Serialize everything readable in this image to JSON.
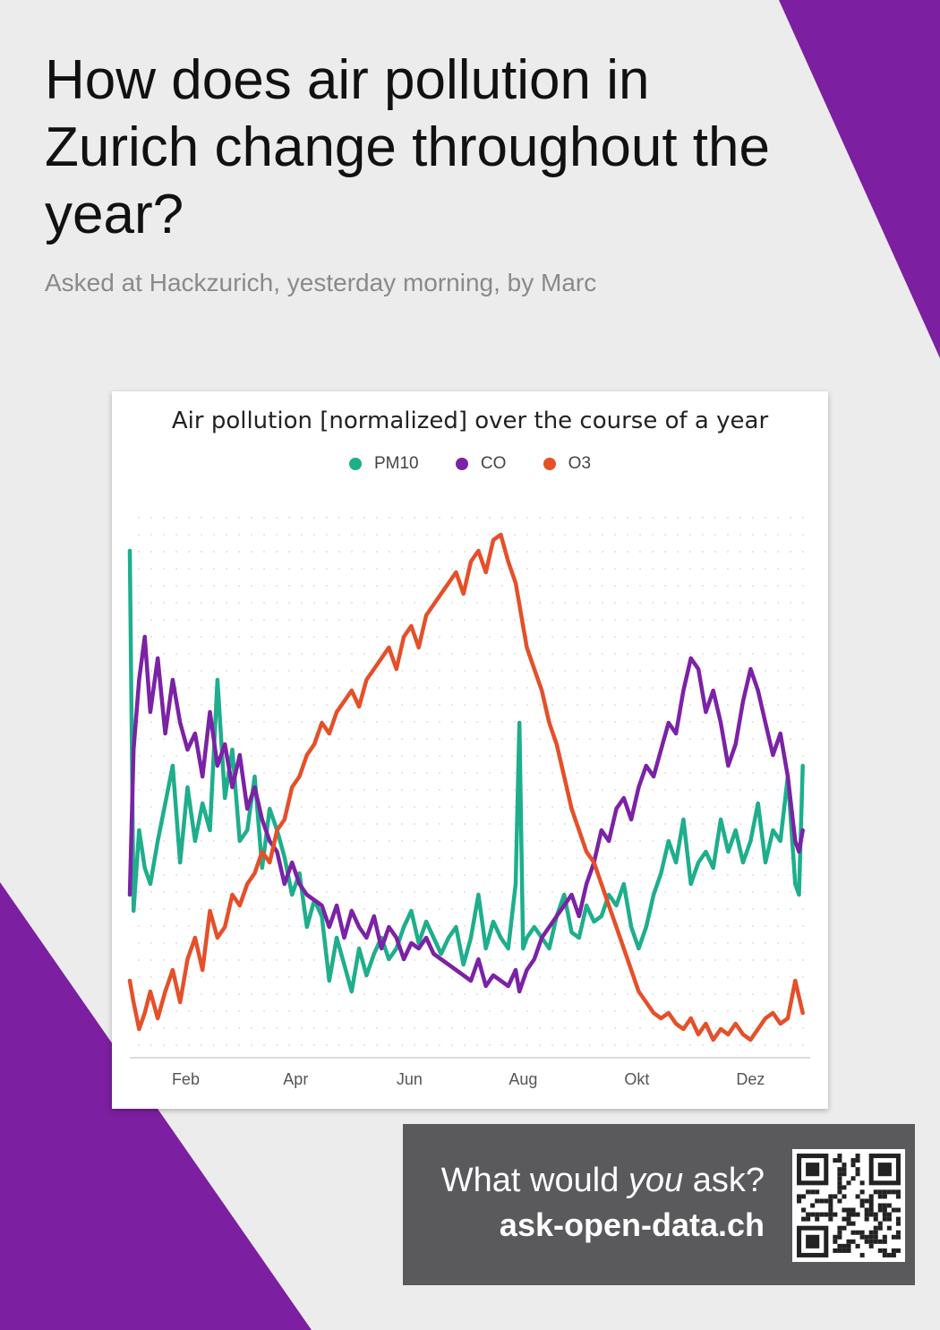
{
  "header": {
    "title": "How does air pollution in Zurich change throughout the year?",
    "subtitle": "Asked at Hackzurich, yesterday morning, by Marc"
  },
  "colors": {
    "background": "#ececec",
    "accent_purple": "#7c1fa0",
    "pm10": "#1fae8c",
    "co": "#7b22a5",
    "o3": "#e4502a",
    "promo_bg": "#5a5a5c"
  },
  "chart_data": {
    "type": "line",
    "title": "Air pollution [normalized] over the course of a year",
    "x_ticks": [
      "Feb",
      "Apr",
      "Jun",
      "Aug",
      "Okt",
      "Dez"
    ],
    "x_tick_days": [
      45,
      104,
      165,
      226,
      287,
      348
    ],
    "xlim": [
      15,
      380
    ],
    "ylim": [
      0,
      1
    ],
    "grid": "dotted",
    "legend_position": "top",
    "series": [
      {
        "name": "PM10",
        "color": "#1fae8c",
        "x": [
          15,
          17,
          20,
          23,
          26,
          30,
          34,
          38,
          42,
          46,
          50,
          54,
          58,
          62,
          66,
          70,
          74,
          78,
          82,
          86,
          90,
          94,
          98,
          102,
          106,
          110,
          114,
          118,
          122,
          126,
          130,
          134,
          138,
          142,
          146,
          150,
          154,
          158,
          162,
          166,
          170,
          174,
          178,
          182,
          186,
          190,
          194,
          198,
          202,
          206,
          210,
          214,
          218,
          222,
          224,
          226,
          228,
          232,
          236,
          240,
          244,
          248,
          252,
          256,
          260,
          264,
          268,
          272,
          276,
          280,
          284,
          288,
          292,
          296,
          300,
          304,
          308,
          312,
          316,
          320,
          324,
          328,
          332,
          336,
          340,
          344,
          348,
          352,
          356,
          360,
          364,
          368,
          372,
          374,
          376
        ],
        "values": [
          0.92,
          0.25,
          0.4,
          0.33,
          0.3,
          0.38,
          0.45,
          0.52,
          0.34,
          0.48,
          0.38,
          0.45,
          0.4,
          0.68,
          0.46,
          0.55,
          0.38,
          0.4,
          0.5,
          0.33,
          0.44,
          0.4,
          0.35,
          0.28,
          0.32,
          0.22,
          0.27,
          0.24,
          0.12,
          0.2,
          0.15,
          0.1,
          0.18,
          0.13,
          0.17,
          0.2,
          0.16,
          0.18,
          0.22,
          0.25,
          0.19,
          0.23,
          0.2,
          0.17,
          0.2,
          0.22,
          0.15,
          0.2,
          0.28,
          0.18,
          0.23,
          0.2,
          0.18,
          0.3,
          0.6,
          0.18,
          0.2,
          0.22,
          0.2,
          0.18,
          0.24,
          0.28,
          0.21,
          0.2,
          0.26,
          0.23,
          0.24,
          0.28,
          0.26,
          0.3,
          0.22,
          0.18,
          0.22,
          0.28,
          0.32,
          0.38,
          0.34,
          0.42,
          0.3,
          0.34,
          0.36,
          0.33,
          0.42,
          0.36,
          0.4,
          0.34,
          0.38,
          0.45,
          0.34,
          0.4,
          0.38,
          0.5,
          0.3,
          0.28,
          0.52
        ]
      },
      {
        "name": "CO",
        "color": "#7b22a5",
        "x": [
          15,
          17,
          20,
          23,
          26,
          30,
          34,
          38,
          42,
          46,
          50,
          54,
          58,
          62,
          66,
          70,
          74,
          78,
          82,
          86,
          90,
          94,
          98,
          102,
          106,
          110,
          114,
          118,
          122,
          126,
          130,
          134,
          138,
          142,
          146,
          150,
          154,
          158,
          162,
          166,
          170,
          174,
          178,
          182,
          186,
          190,
          194,
          198,
          202,
          206,
          210,
          214,
          218,
          222,
          224,
          226,
          228,
          232,
          236,
          240,
          244,
          248,
          252,
          256,
          260,
          264,
          268,
          272,
          276,
          280,
          284,
          288,
          292,
          296,
          300,
          304,
          308,
          312,
          316,
          320,
          324,
          328,
          332,
          336,
          340,
          344,
          348,
          352,
          356,
          360,
          364,
          368,
          372,
          374,
          376
        ],
        "values": [
          0.28,
          0.55,
          0.68,
          0.76,
          0.62,
          0.72,
          0.58,
          0.68,
          0.6,
          0.55,
          0.58,
          0.5,
          0.62,
          0.52,
          0.56,
          0.48,
          0.54,
          0.44,
          0.48,
          0.42,
          0.38,
          0.36,
          0.3,
          0.34,
          0.3,
          0.28,
          0.27,
          0.26,
          0.22,
          0.26,
          0.2,
          0.25,
          0.22,
          0.2,
          0.24,
          0.18,
          0.22,
          0.2,
          0.16,
          0.19,
          0.18,
          0.2,
          0.17,
          0.16,
          0.15,
          0.14,
          0.13,
          0.12,
          0.16,
          0.11,
          0.13,
          0.12,
          0.11,
          0.14,
          0.1,
          0.12,
          0.14,
          0.16,
          0.2,
          0.22,
          0.24,
          0.26,
          0.28,
          0.24,
          0.3,
          0.34,
          0.4,
          0.38,
          0.44,
          0.46,
          0.42,
          0.48,
          0.52,
          0.5,
          0.55,
          0.6,
          0.58,
          0.66,
          0.72,
          0.7,
          0.62,
          0.66,
          0.6,
          0.52,
          0.56,
          0.64,
          0.7,
          0.66,
          0.6,
          0.54,
          0.58,
          0.5,
          0.38,
          0.36,
          0.4
        ]
      },
      {
        "name": "O3",
        "color": "#e4502a",
        "x": [
          15,
          17,
          20,
          23,
          26,
          30,
          34,
          38,
          42,
          46,
          50,
          54,
          58,
          62,
          66,
          70,
          74,
          78,
          82,
          86,
          90,
          94,
          98,
          102,
          106,
          110,
          114,
          118,
          122,
          126,
          130,
          134,
          138,
          142,
          146,
          150,
          154,
          158,
          162,
          166,
          170,
          174,
          178,
          182,
          186,
          190,
          194,
          198,
          202,
          206,
          210,
          214,
          218,
          222,
          224,
          226,
          228,
          232,
          236,
          240,
          244,
          248,
          252,
          256,
          260,
          264,
          268,
          272,
          276,
          280,
          284,
          288,
          292,
          296,
          300,
          304,
          308,
          312,
          316,
          320,
          324,
          328,
          332,
          336,
          340,
          344,
          348,
          352,
          356,
          360,
          364,
          368,
          372,
          374,
          376
        ],
        "values": [
          0.12,
          0.08,
          0.03,
          0.06,
          0.1,
          0.05,
          0.1,
          0.14,
          0.08,
          0.16,
          0.2,
          0.14,
          0.25,
          0.2,
          0.22,
          0.28,
          0.26,
          0.3,
          0.32,
          0.36,
          0.34,
          0.4,
          0.42,
          0.48,
          0.5,
          0.54,
          0.56,
          0.6,
          0.58,
          0.62,
          0.64,
          0.66,
          0.63,
          0.68,
          0.7,
          0.72,
          0.74,
          0.7,
          0.76,
          0.78,
          0.74,
          0.8,
          0.82,
          0.84,
          0.86,
          0.88,
          0.84,
          0.9,
          0.92,
          0.88,
          0.94,
          0.95,
          0.9,
          0.86,
          0.82,
          0.78,
          0.74,
          0.7,
          0.66,
          0.6,
          0.56,
          0.5,
          0.44,
          0.4,
          0.36,
          0.34,
          0.3,
          0.26,
          0.22,
          0.18,
          0.14,
          0.1,
          0.08,
          0.06,
          0.05,
          0.06,
          0.04,
          0.03,
          0.05,
          0.02,
          0.04,
          0.01,
          0.03,
          0.02,
          0.04,
          0.02,
          0.01,
          0.03,
          0.05,
          0.06,
          0.04,
          0.05,
          0.12,
          0.09,
          0.06
        ]
      }
    ]
  },
  "promo": {
    "question_pre": "What would ",
    "question_em": "you",
    "question_post": " ask?",
    "url": "ask-open-data.ch"
  },
  "icons": {
    "qr": "qr-code-icon"
  }
}
